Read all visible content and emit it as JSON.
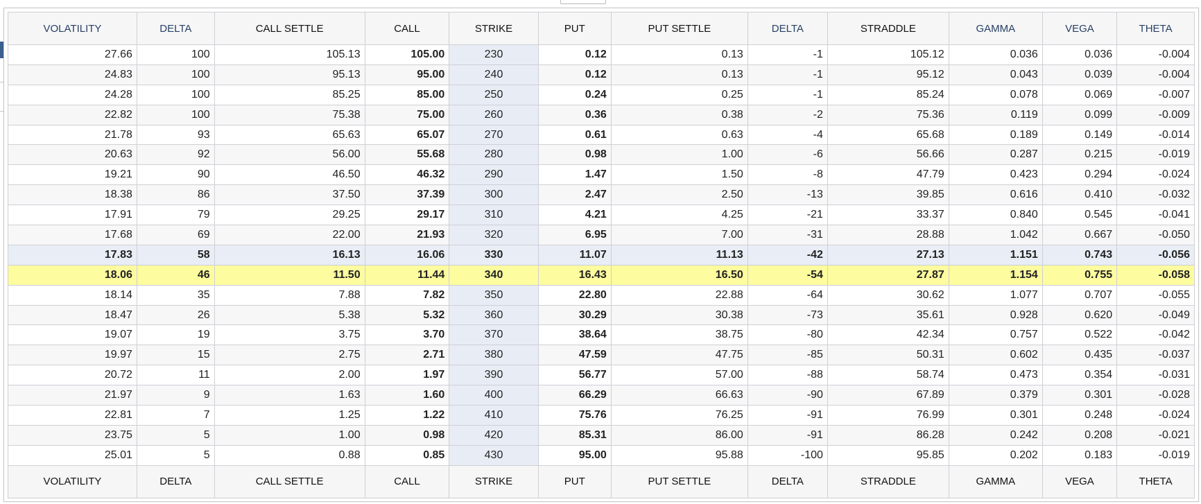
{
  "headers": [
    "VOLATILITY",
    "DELTA",
    "CALL SETTLE",
    "CALL",
    "STRIKE",
    "PUT",
    "PUT SETTLE",
    "DELTA",
    "STRADDLE",
    "GAMMA",
    "VEGA",
    "THETA"
  ],
  "rows": [
    {
      "volatility": "27.66",
      "call_delta": "100",
      "call_settle": "105.13",
      "call": "105.00",
      "strike": "230",
      "put": "0.12",
      "put_settle": "0.13",
      "put_delta": "-1",
      "straddle": "105.12",
      "gamma": "0.036",
      "vega": "0.036",
      "theta": "-0.004"
    },
    {
      "volatility": "24.83",
      "call_delta": "100",
      "call_settle": "95.13",
      "call": "95.00",
      "strike": "240",
      "put": "0.12",
      "put_settle": "0.13",
      "put_delta": "-1",
      "straddle": "95.12",
      "gamma": "0.043",
      "vega": "0.039",
      "theta": "-0.004"
    },
    {
      "volatility": "24.28",
      "call_delta": "100",
      "call_settle": "85.25",
      "call": "85.00",
      "strike": "250",
      "put": "0.24",
      "put_settle": "0.25",
      "put_delta": "-1",
      "straddle": "85.24",
      "gamma": "0.078",
      "vega": "0.069",
      "theta": "-0.007"
    },
    {
      "volatility": "22.82",
      "call_delta": "100",
      "call_settle": "75.38",
      "call": "75.00",
      "strike": "260",
      "put": "0.36",
      "put_settle": "0.38",
      "put_delta": "-2",
      "straddle": "75.36",
      "gamma": "0.119",
      "vega": "0.099",
      "theta": "-0.009"
    },
    {
      "volatility": "21.78",
      "call_delta": "93",
      "call_settle": "65.63",
      "call": "65.07",
      "strike": "270",
      "put": "0.61",
      "put_settle": "0.63",
      "put_delta": "-4",
      "straddle": "65.68",
      "gamma": "0.189",
      "vega": "0.149",
      "theta": "-0.014"
    },
    {
      "volatility": "20.63",
      "call_delta": "92",
      "call_settle": "56.00",
      "call": "55.68",
      "strike": "280",
      "put": "0.98",
      "put_settle": "1.00",
      "put_delta": "-6",
      "straddle": "56.66",
      "gamma": "0.287",
      "vega": "0.215",
      "theta": "-0.019"
    },
    {
      "volatility": "19.21",
      "call_delta": "90",
      "call_settle": "46.50",
      "call": "46.32",
      "strike": "290",
      "put": "1.47",
      "put_settle": "1.50",
      "put_delta": "-8",
      "straddle": "47.79",
      "gamma": "0.423",
      "vega": "0.294",
      "theta": "-0.024"
    },
    {
      "volatility": "18.38",
      "call_delta": "86",
      "call_settle": "37.50",
      "call": "37.39",
      "strike": "300",
      "put": "2.47",
      "put_settle": "2.50",
      "put_delta": "-13",
      "straddle": "39.85",
      "gamma": "0.616",
      "vega": "0.410",
      "theta": "-0.032"
    },
    {
      "volatility": "17.91",
      "call_delta": "79",
      "call_settle": "29.25",
      "call": "29.17",
      "strike": "310",
      "put": "4.21",
      "put_settle": "4.25",
      "put_delta": "-21",
      "straddle": "33.37",
      "gamma": "0.840",
      "vega": "0.545",
      "theta": "-0.041"
    },
    {
      "volatility": "17.68",
      "call_delta": "69",
      "call_settle": "22.00",
      "call": "21.93",
      "strike": "320",
      "put": "6.95",
      "put_settle": "7.00",
      "put_delta": "-31",
      "straddle": "28.88",
      "gamma": "1.042",
      "vega": "0.667",
      "theta": "-0.050"
    },
    {
      "volatility": "17.83",
      "call_delta": "58",
      "call_settle": "16.13",
      "call": "16.06",
      "strike": "330",
      "put": "11.07",
      "put_settle": "11.13",
      "put_delta": "-42",
      "straddle": "27.13",
      "gamma": "1.151",
      "vega": "0.743",
      "theta": "-0.056"
    },
    {
      "volatility": "18.06",
      "call_delta": "46",
      "call_settle": "11.50",
      "call": "11.44",
      "strike": "340",
      "put": "16.43",
      "put_settle": "16.50",
      "put_delta": "-54",
      "straddle": "27.87",
      "gamma": "1.154",
      "vega": "0.755",
      "theta": "-0.058"
    },
    {
      "volatility": "18.14",
      "call_delta": "35",
      "call_settle": "7.88",
      "call": "7.82",
      "strike": "350",
      "put": "22.80",
      "put_settle": "22.88",
      "put_delta": "-64",
      "straddle": "30.62",
      "gamma": "1.077",
      "vega": "0.707",
      "theta": "-0.055"
    },
    {
      "volatility": "18.47",
      "call_delta": "26",
      "call_settle": "5.38",
      "call": "5.32",
      "strike": "360",
      "put": "30.29",
      "put_settle": "30.38",
      "put_delta": "-73",
      "straddle": "35.61",
      "gamma": "0.928",
      "vega": "0.620",
      "theta": "-0.049"
    },
    {
      "volatility": "19.07",
      "call_delta": "19",
      "call_settle": "3.75",
      "call": "3.70",
      "strike": "370",
      "put": "38.64",
      "put_settle": "38.75",
      "put_delta": "-80",
      "straddle": "42.34",
      "gamma": "0.757",
      "vega": "0.522",
      "theta": "-0.042"
    },
    {
      "volatility": "19.97",
      "call_delta": "15",
      "call_settle": "2.75",
      "call": "2.71",
      "strike": "380",
      "put": "47.59",
      "put_settle": "47.75",
      "put_delta": "-85",
      "straddle": "50.31",
      "gamma": "0.602",
      "vega": "0.435",
      "theta": "-0.037"
    },
    {
      "volatility": "20.72",
      "call_delta": "11",
      "call_settle": "2.00",
      "call": "1.97",
      "strike": "390",
      "put": "56.77",
      "put_settle": "57.00",
      "put_delta": "-88",
      "straddle": "58.74",
      "gamma": "0.473",
      "vega": "0.354",
      "theta": "-0.031"
    },
    {
      "volatility": "21.97",
      "call_delta": "9",
      "call_settle": "1.63",
      "call": "1.60",
      "strike": "400",
      "put": "66.29",
      "put_settle": "66.63",
      "put_delta": "-90",
      "straddle": "67.89",
      "gamma": "0.379",
      "vega": "0.301",
      "theta": "-0.028"
    },
    {
      "volatility": "22.81",
      "call_delta": "7",
      "call_settle": "1.25",
      "call": "1.22",
      "strike": "410",
      "put": "75.76",
      "put_settle": "76.25",
      "put_delta": "-91",
      "straddle": "76.99",
      "gamma": "0.301",
      "vega": "0.248",
      "theta": "-0.024"
    },
    {
      "volatility": "23.75",
      "call_delta": "5",
      "call_settle": "1.00",
      "call": "0.98",
      "strike": "420",
      "put": "85.31",
      "put_settle": "86.00",
      "put_delta": "-91",
      "straddle": "86.28",
      "gamma": "0.242",
      "vega": "0.208",
      "theta": "-0.021"
    },
    {
      "volatility": "25.01",
      "call_delta": "5",
      "call_settle": "0.88",
      "call": "0.85",
      "strike": "430",
      "put": "95.00",
      "put_settle": "95.88",
      "put_delta": "-100",
      "straddle": "95.85",
      "gamma": "0.202",
      "vega": "0.183",
      "theta": "-0.019"
    }
  ],
  "colors": {
    "header_text_blue": "#274166",
    "highlight_row": "#fdfc9e",
    "strike_column": "#e8edf5",
    "atm_row": "#e9eef6",
    "grid_border": "#cfcfd6"
  }
}
